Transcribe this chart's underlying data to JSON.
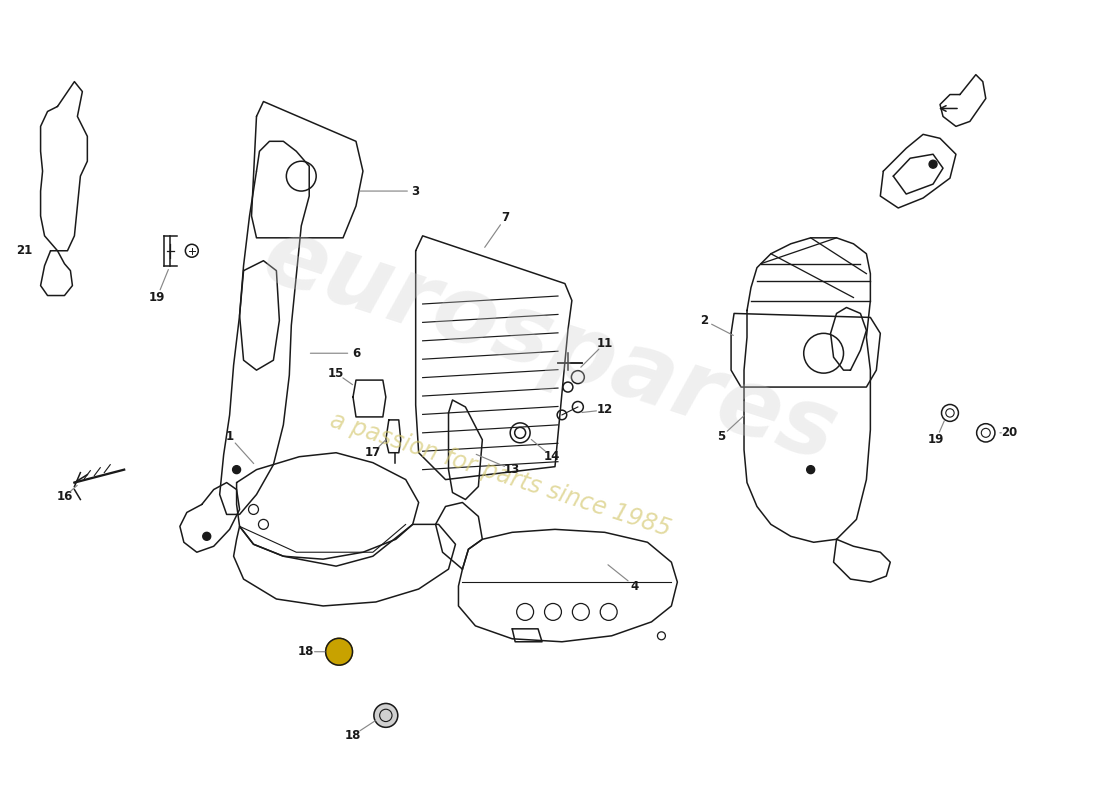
{
  "bg_color": "#ffffff",
  "line_color": "#1a1a1a",
  "label_color": "#1a1a1a",
  "leader_color": "#888888",
  "watermark_text1": "eurospares",
  "watermark_text2": "a passion for parts since 1985",
  "watermark_color1": "#cccccc",
  "watermark_color2": "#d4c870"
}
